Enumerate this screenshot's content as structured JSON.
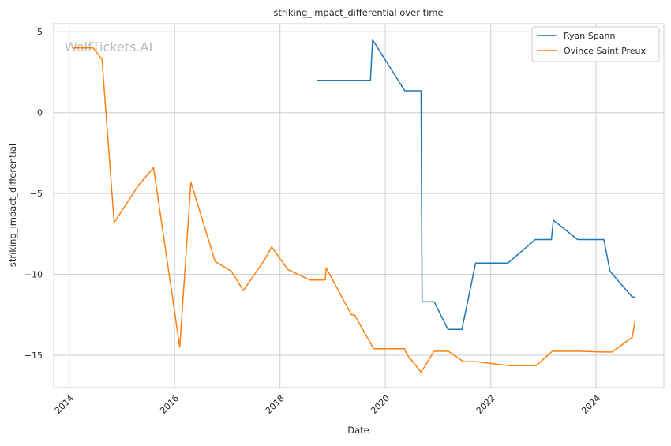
{
  "watermark": "WolfTickets.AI",
  "chart_data": {
    "type": "line",
    "title": "striking_impact_differential over time",
    "xlabel": "Date",
    "ylabel": "striking_impact_differential",
    "xlim": [
      "2013-09-15",
      "2025-04-15"
    ],
    "ylim": [
      -17,
      5.5
    ],
    "x_ticks": [
      "2014",
      "2016",
      "2018",
      "2020",
      "2022",
      "2024"
    ],
    "x_tick_dates": [
      "2014-01-01",
      "2016-01-01",
      "2018-01-01",
      "2020-01-01",
      "2022-01-01",
      "2024-01-01"
    ],
    "y_ticks": [
      5,
      0,
      -5,
      -10,
      -15
    ],
    "y_tick_labels": [
      "5",
      "0",
      "−5",
      "−10",
      "−15"
    ],
    "grid": true,
    "legend_position": "top-right",
    "series": [
      {
        "name": "Ryan Spann",
        "color": "#1f77b4",
        "points": [
          [
            "2018-09-15",
            2.0
          ],
          [
            "2019-09-20",
            2.0
          ],
          [
            "2019-10-05",
            4.5
          ],
          [
            "2020-05-15",
            1.35
          ],
          [
            "2020-09-05",
            1.35
          ],
          [
            "2020-09-12",
            -11.7
          ],
          [
            "2020-12-05",
            -11.7
          ],
          [
            "2021-03-10",
            -13.4
          ],
          [
            "2021-06-15",
            -13.4
          ],
          [
            "2021-09-18",
            -9.3
          ],
          [
            "2022-04-30",
            -9.3
          ],
          [
            "2022-11-05",
            -7.85
          ],
          [
            "2023-02-25",
            -7.85
          ],
          [
            "2023-03-11",
            -6.65
          ],
          [
            "2023-08-26",
            -7.85
          ],
          [
            "2024-02-24",
            -7.85
          ],
          [
            "2024-04-06",
            -9.8
          ],
          [
            "2024-09-07",
            -11.4
          ],
          [
            "2024-09-28",
            -11.4
          ]
        ]
      },
      {
        "name": "Ovince Saint Preux",
        "color": "#ff7f0e",
        "points": [
          [
            "2014-01-25",
            4.0
          ],
          [
            "2014-06-15",
            4.0
          ],
          [
            "2014-08-16",
            3.3
          ],
          [
            "2014-11-08",
            -6.8
          ],
          [
            "2015-04-25",
            -4.5
          ],
          [
            "2015-08-08",
            -3.4
          ],
          [
            "2016-02-06",
            -14.5
          ],
          [
            "2016-04-23",
            -4.3
          ],
          [
            "2016-10-08",
            -9.2
          ],
          [
            "2017-01-28",
            -9.8
          ],
          [
            "2017-04-22",
            -11.0
          ],
          [
            "2017-09-16",
            -9.1
          ],
          [
            "2017-11-04",
            -8.3
          ],
          [
            "2018-02-24",
            -9.7
          ],
          [
            "2018-07-28",
            -10.35
          ],
          [
            "2018-11-10",
            -10.35
          ],
          [
            "2018-11-17",
            -9.6
          ],
          [
            "2019-05-11",
            -12.5
          ],
          [
            "2019-06-01",
            -12.5
          ],
          [
            "2019-10-12",
            -14.6
          ],
          [
            "2020-05-13",
            -14.6
          ],
          [
            "2020-05-30",
            -14.95
          ],
          [
            "2020-09-05",
            -16.05
          ],
          [
            "2020-12-05",
            -14.75
          ],
          [
            "2021-03-13",
            -14.75
          ],
          [
            "2021-06-26",
            -15.4
          ],
          [
            "2021-09-25",
            -15.4
          ],
          [
            "2022-05-14",
            -15.65
          ],
          [
            "2022-11-12",
            -15.65
          ],
          [
            "2023-03-04",
            -14.75
          ],
          [
            "2023-09-02",
            -14.75
          ],
          [
            "2024-02-24",
            -14.8
          ],
          [
            "2024-04-20",
            -14.8
          ],
          [
            "2024-09-07",
            -13.9
          ],
          [
            "2024-09-28",
            -12.85
          ]
        ]
      }
    ]
  }
}
